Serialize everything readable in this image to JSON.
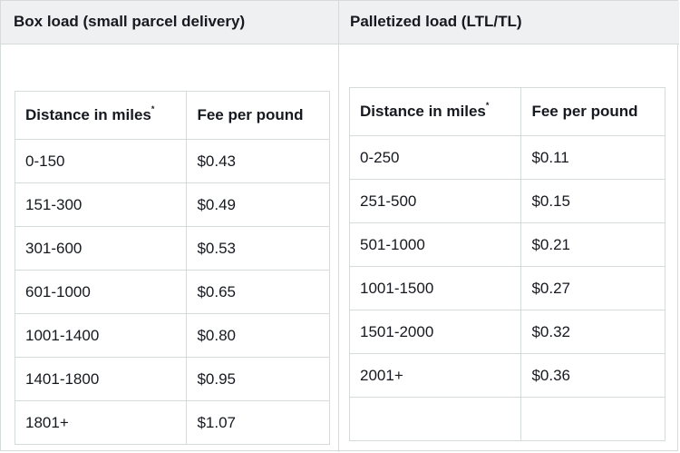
{
  "left": {
    "title": "Box load (small parcel delivery)",
    "headers": {
      "distance": "Distance in miles",
      "fee": "Fee per pound",
      "footnote_mark": "*"
    },
    "rows": [
      {
        "distance": "0-150",
        "fee": "$0.43"
      },
      {
        "distance": "151-300",
        "fee": "$0.49"
      },
      {
        "distance": "301-600",
        "fee": "$0.53"
      },
      {
        "distance": "601-1000",
        "fee": "$0.65"
      },
      {
        "distance": "1001-1400",
        "fee": "$0.80"
      },
      {
        "distance": "1401-1800",
        "fee": "$0.95"
      },
      {
        "distance": "1801+",
        "fee": "$1.07"
      }
    ]
  },
  "right": {
    "title": "Palletized load (LTL/TL)",
    "headers": {
      "distance": "Distance in miles",
      "fee": "Fee per pound",
      "footnote_mark": "*"
    },
    "rows": [
      {
        "distance": "0-250",
        "fee": "$0.11"
      },
      {
        "distance": "251-500",
        "fee": "$0.15"
      },
      {
        "distance": "501-1000",
        "fee": "$0.21"
      },
      {
        "distance": "1001-1500",
        "fee": "$0.27"
      },
      {
        "distance": "1501-2000",
        "fee": "$0.32"
      },
      {
        "distance": "2001+",
        "fee": "$0.36"
      }
    ]
  }
}
